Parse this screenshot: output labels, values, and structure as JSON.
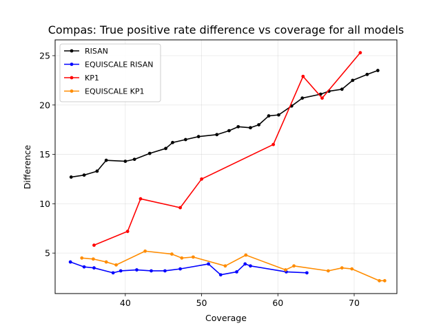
{
  "chart_data": {
    "type": "line",
    "title": "Compas: True positive rate difference vs coverage for all models",
    "xlabel": "Coverage",
    "ylabel": "Difference",
    "xlim": [
      30.8,
      75.6
    ],
    "ylim": [
      0.9,
      26.6
    ],
    "xticks": [
      "40",
      "50",
      "60",
      "70"
    ],
    "yticks": [
      "5",
      "10",
      "15",
      "20",
      "25"
    ],
    "xtick_values": [
      40,
      50,
      60,
      70
    ],
    "ytick_values": [
      5,
      10,
      15,
      20,
      25
    ],
    "grid": true,
    "legend_position": "top-left",
    "series": [
      {
        "name": "RISAN",
        "color": "#000000",
        "x": [
          32.9,
          34.6,
          36.3,
          37.5,
          40.0,
          41.2,
          43.2,
          45.3,
          46.2,
          47.9,
          49.6,
          52.0,
          53.6,
          54.8,
          56.4,
          57.5,
          58.8,
          60.1,
          61.8,
          63.2,
          65.6,
          66.7,
          68.4,
          69.8,
          71.7,
          73.1
        ],
        "y": [
          12.7,
          12.9,
          13.3,
          14.4,
          14.3,
          14.5,
          15.1,
          15.6,
          16.2,
          16.5,
          16.8,
          17.0,
          17.4,
          17.8,
          17.7,
          18.0,
          18.9,
          19.0,
          19.9,
          20.7,
          21.1,
          21.4,
          21.6,
          22.5,
          23.1,
          23.5
        ]
      },
      {
        "name": "EQUISCALE RISAN",
        "color": "#0000ff",
        "x": [
          32.8,
          34.6,
          35.9,
          38.4,
          39.4,
          41.5,
          43.4,
          45.2,
          47.2,
          50.9,
          52.5,
          54.6,
          55.7,
          56.4,
          61.1,
          63.8
        ],
        "y": [
          4.1,
          3.6,
          3.5,
          3.0,
          3.2,
          3.3,
          3.2,
          3.2,
          3.4,
          3.9,
          2.8,
          3.1,
          3.9,
          3.7,
          3.1,
          3.0
        ]
      },
      {
        "name": "KP1",
        "color": "#ff0000",
        "x": [
          35.9,
          40.3,
          42.0,
          47.2,
          50.0,
          59.4,
          63.3,
          65.8,
          70.8
        ],
        "y": [
          5.8,
          7.2,
          10.5,
          9.6,
          12.5,
          16.0,
          22.9,
          20.7,
          25.3
        ]
      },
      {
        "name": "EQUISCALE KP1",
        "color": "#ff8c00",
        "x": [
          34.3,
          35.8,
          37.5,
          38.8,
          42.6,
          46.1,
          47.4,
          48.9,
          53.1,
          55.8,
          61.0,
          62.1,
          66.6,
          68.4,
          69.7,
          73.3,
          74.0
        ],
        "y": [
          4.5,
          4.4,
          4.1,
          3.8,
          5.2,
          4.9,
          4.5,
          4.6,
          3.7,
          4.8,
          3.3,
          3.7,
          3.2,
          3.5,
          3.4,
          2.2,
          2.2
        ]
      }
    ]
  }
}
